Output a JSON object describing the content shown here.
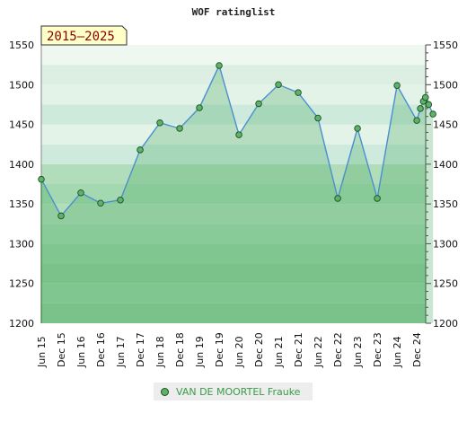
{
  "chart_data": {
    "type": "line",
    "title": "WOF ratinglist",
    "period_label": "2015–2025",
    "ylim": [
      1200,
      1550
    ],
    "y_ticks": [
      1200,
      1250,
      1300,
      1350,
      1400,
      1450,
      1500,
      1550
    ],
    "x_tick_labels": [
      "Jun 15",
      "Dec 15",
      "Jun 16",
      "Dec 16",
      "Jun 17",
      "Dec 17",
      "Jun 18",
      "Dec 18",
      "Jun 19",
      "Dec 19",
      "Jun 20",
      "Dec 20",
      "Jun 21",
      "Dec 21",
      "Jun 22",
      "Dec 22",
      "Jun 23",
      "Dec 23",
      "Jun 24",
      "Dec 24"
    ],
    "legend_position": "bottom",
    "series": [
      {
        "name": "VAN DE MOORTEL Frauke",
        "color": "#4a8fd0",
        "marker_color": "#5db36a",
        "x": [
          0,
          1,
          2,
          3,
          4,
          5,
          6,
          7,
          8,
          9,
          10,
          11,
          12,
          13,
          14,
          15,
          16,
          17,
          18,
          19,
          19.18,
          19.33,
          19.44,
          19.6,
          19.82
        ],
        "values": [
          1381,
          1335,
          1364,
          1351,
          1355,
          1418,
          1452,
          1445,
          1471,
          1524,
          1437,
          1476,
          1500,
          1490,
          1458,
          1357,
          1445,
          1357,
          1499,
          1455,
          1470,
          1479,
          1484,
          1475,
          1463
        ]
      }
    ]
  }
}
